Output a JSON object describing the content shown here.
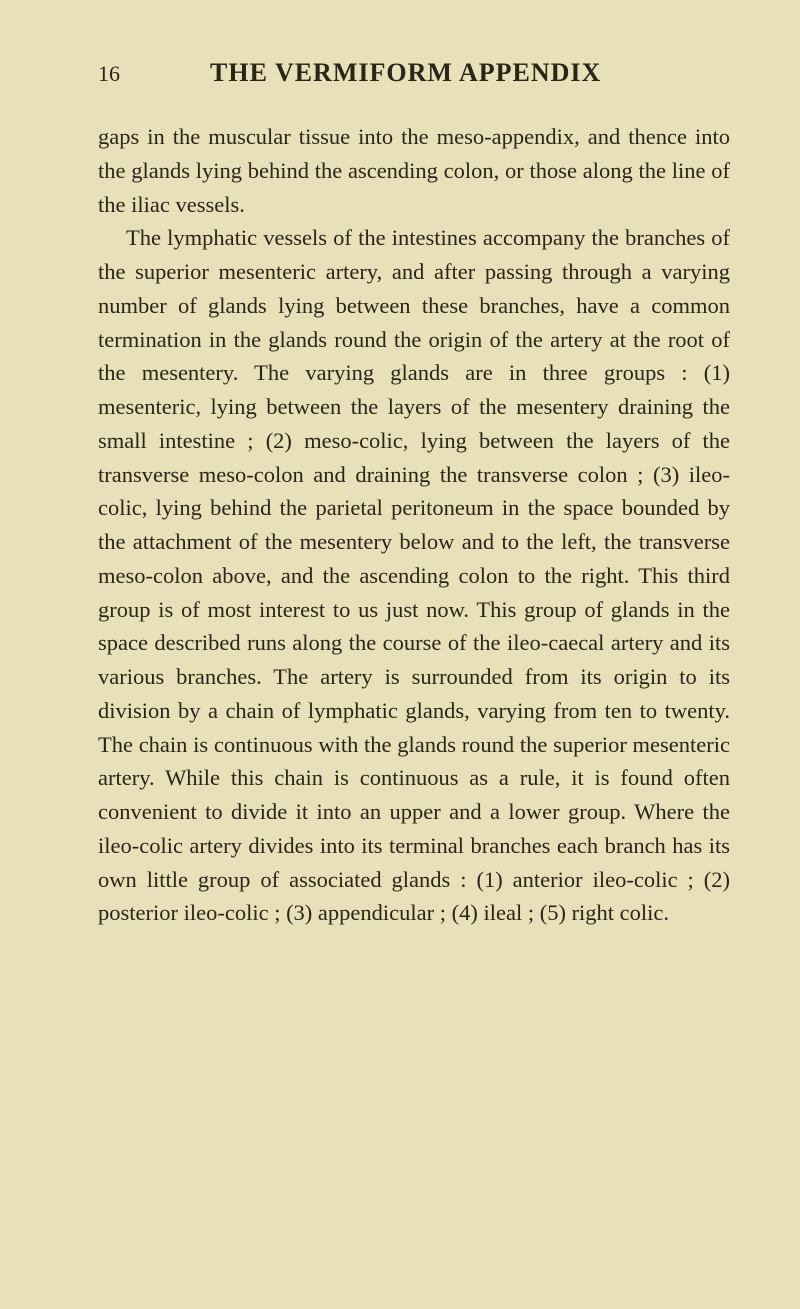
{
  "header": {
    "page_number": "16",
    "title": "THE VERMIFORM APPENDIX"
  },
  "body": {
    "paragraph1": "gaps in the muscular tissue into the meso-appendix, and thence into the glands lying behind the ascend­ing colon, or those along the line of the iliac vessels.",
    "paragraph2": "The lymphatic vessels of the intestines accompany the branches of the superior mesenteric artery, and after passing through a varying number of glands lying between these branches, have a common termi­nation in the glands round the origin of the artery at the root of the mesentery. The varying glands are in three groups : (1) mesenteric, lying between the layers of the mesentery draining the small intestine ; (2) meso-colic, lying between the layers of the transverse meso-colon and draining the trans­verse colon ; (3) ileo-colic, lying behind the parietal peritoneum in the space bounded by the attachment of the mesentery below and to the left, the trans­verse meso-colon above, and the ascending colon to the right. This third group is of most interest to us just now. This group of glands in the space described runs along the course of the ileo-caecal artery and its various branches. The artery is surrounded from its origin to its division by a chain of lymphatic glands, varying from ten to twenty. The chain is continuous with the glands round the superior mesenteric artery. While this chain is continuous as a rule, it is found often convenient to divide it into an upper and a lower group. Where the ileo-colic artery divides into its terminal branches each branch has its own little group of associated glands : (1) anterior ileo-colic ; (2) posterior ileo-colic ; (3) appendicular ; (4) ileal ; (5) right colic."
  }
}
